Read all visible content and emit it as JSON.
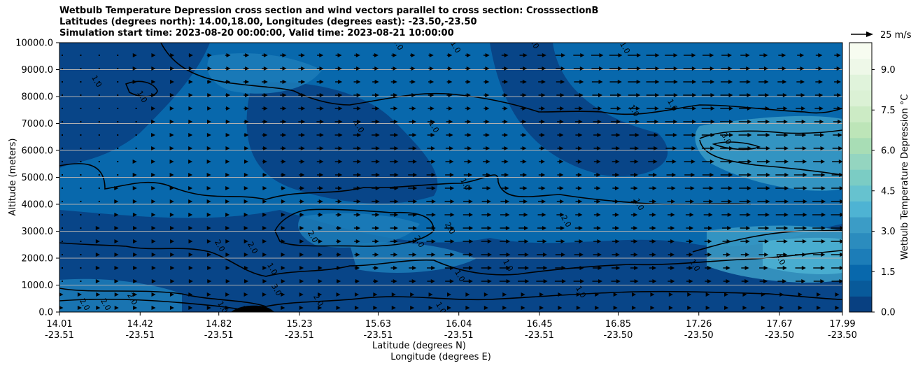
{
  "title_lines": [
    "Wetbulb Temperature Depression cross section and wind vectors parallel to cross section: CrosssectionB",
    "Latitudes (degrees north): 14.00,18.00, Longitudes (degrees east): -23.50,-23.50",
    "Simulation start time: 2023-08-20 00:00:00, Valid time: 2023-08-21 10:00:00"
  ],
  "chart_data": {
    "type": "heatmap",
    "ylabel": "Altitude (meters)",
    "xlabel_line1": "Latitude (degrees N)",
    "xlabel_line2": "Longitude (degrees E)",
    "ylim": [
      0,
      10000
    ],
    "yticks": [
      "0.0",
      "1000.0",
      "2000.0",
      "3000.0",
      "4000.0",
      "5000.0",
      "6000.0",
      "7000.0",
      "8000.0",
      "9000.0",
      "10000.0"
    ],
    "xticks": [
      {
        "lat": "14.01",
        "lon": "-23.51"
      },
      {
        "lat": "14.42",
        "lon": "-23.51"
      },
      {
        "lat": "14.82",
        "lon": "-23.51"
      },
      {
        "lat": "15.23",
        "lon": "-23.51"
      },
      {
        "lat": "15.63",
        "lon": "-23.51"
      },
      {
        "lat": "16.04",
        "lon": "-23.51"
      },
      {
        "lat": "16.45",
        "lon": "-23.51"
      },
      {
        "lat": "16.85",
        "lon": "-23.50"
      },
      {
        "lat": "17.26",
        "lon": "-23.50"
      },
      {
        "lat": "17.67",
        "lon": "-23.50"
      },
      {
        "lat": "17.99",
        "lon": "-23.50"
      }
    ],
    "grid": "horizontal",
    "colorbar": {
      "label": "Wetbulb Temperature Depression °C",
      "min": 0.0,
      "max": 10.0,
      "ticks": [
        "0.0",
        "1.5",
        "3.0",
        "4.5",
        "6.0",
        "7.5",
        "9.0"
      ],
      "colors": [
        "#084081",
        "#085a9a",
        "#0868ac",
        "#1c7db8",
        "#2b8cbe",
        "#3b9cc6",
        "#4eb3d3",
        "#66c2cf",
        "#7bccc4",
        "#94d5c0",
        "#a8ddb5",
        "#bde5b8",
        "#ccebc5",
        "#dbf1d5",
        "#e0f3db",
        "#eef8e8",
        "#f7fcf0"
      ]
    },
    "wind_reference": {
      "label": "25 m/s"
    },
    "contour_labels": [
      "1.0",
      "2.0",
      "3.0",
      "4.0"
    ]
  },
  "colors": {
    "deep": "#084081",
    "mid": "#0868ac",
    "light": "#1c7db8",
    "pale": "#3b9cc6",
    "lightest": "#4eb3d3"
  }
}
